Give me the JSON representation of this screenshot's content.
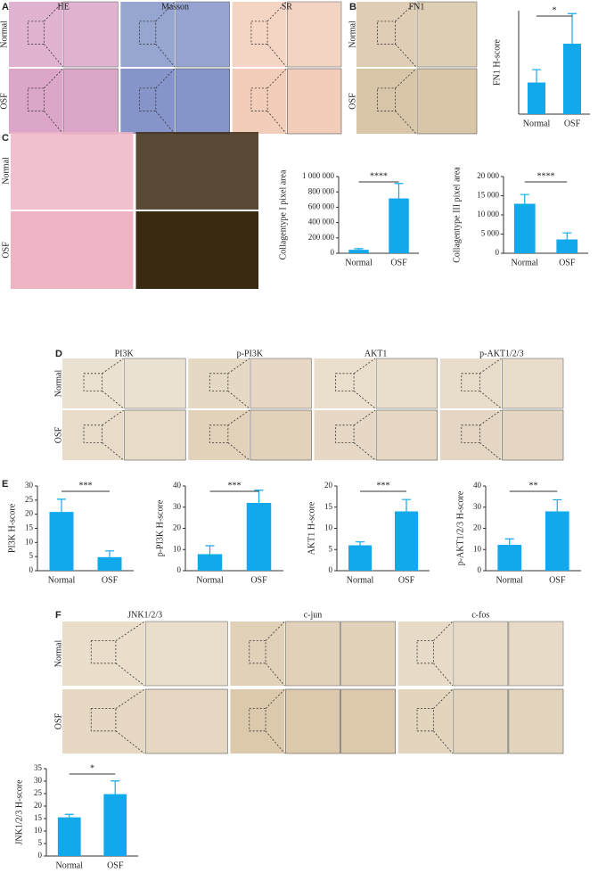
{
  "panels": [
    {
      "letter": "A",
      "columns": [
        "HE",
        "Masson",
        "SR"
      ],
      "rows": [
        "Normal",
        "OSF"
      ]
    },
    {
      "letter": "B",
      "columns": [
        "FN1"
      ],
      "rows": [
        "Normal",
        "OSF"
      ]
    },
    {
      "letter": "C",
      "rows": [
        "Normal",
        "OSF"
      ]
    },
    {
      "letter": "D",
      "columns": [
        "PI3K",
        "p-PI3K",
        "AKT1",
        "p-AKT1/2/3"
      ],
      "rows": [
        "Normal",
        "OSF"
      ]
    },
    {
      "letter": "E"
    },
    {
      "letter": "F",
      "columns": [
        "JNK1/2/3",
        "c-jun",
        "c-fos"
      ],
      "rows": [
        "Normal",
        "OSF"
      ]
    }
  ],
  "chart_data": [
    {
      "type": "bar",
      "y_label": "FN1 H-score",
      "categories": [
        "Normal",
        "OSF"
      ],
      "values": [
        11,
        24.5
      ],
      "errors": [
        4.5,
        10.5
      ],
      "color": "#12a8ec",
      "ylim": [
        0,
        36
      ],
      "significance": "*"
    },
    {
      "type": "bar",
      "y_label": "Collagentype I pixel area",
      "categories": [
        "Normal",
        "OSF"
      ],
      "values": [
        45000,
        715000
      ],
      "errors": [
        15000,
        195000
      ],
      "color": "#12a8ec",
      "ylim": [
        0,
        1000000
      ],
      "yticks": [
        0,
        {
          "value": 200000,
          "label": "200 000"
        },
        {
          "value": 400000,
          "label": "400 000"
        },
        {
          "value": 600000,
          "label": "600 000"
        },
        {
          "value": 800000,
          "label": "800 000"
        },
        {
          "value": 1000000,
          "label": "1 000 000"
        }
      ],
      "significance": "****"
    },
    {
      "type": "bar",
      "y_label": "Collagentype III pixel area",
      "categories": [
        "Normal",
        "OSF"
      ],
      "values": [
        12900,
        3600
      ],
      "errors": [
        2400,
        1700
      ],
      "color": "#12a8ec",
      "ylim": [
        0,
        20000
      ],
      "yticks": [
        0,
        {
          "value": 5000,
          "label": "5 000"
        },
        {
          "value": 10000,
          "label": "10 000"
        },
        {
          "value": 15000,
          "label": "15 000"
        },
        {
          "value": 20000,
          "label": "20 000"
        }
      ],
      "significance": "****"
    },
    {
      "type": "bar",
      "y_label": "PI3K H-score",
      "categories": [
        "Normal",
        "OSF"
      ],
      "values": [
        20.8,
        4.8
      ],
      "errors": [
        4.5,
        2.2
      ],
      "color": "#12a8ec",
      "ylim": [
        0,
        30
      ],
      "yticks": [
        0,
        5,
        10,
        15,
        20,
        25,
        30
      ],
      "significance": "***"
    },
    {
      "type": "bar",
      "y_label": "p-PI3K H-score",
      "categories": [
        "Normal",
        "OSF"
      ],
      "values": [
        7.8,
        32
      ],
      "errors": [
        4,
        6
      ],
      "color": "#12a8ec",
      "ylim": [
        0,
        40
      ],
      "yticks": [
        0,
        10,
        20,
        30,
        40
      ],
      "significance": "***"
    },
    {
      "type": "bar",
      "y_label": "AKT1 H-score",
      "categories": [
        "Normal",
        "OSF"
      ],
      "values": [
        6,
        14
      ],
      "errors": [
        0.8,
        2.8
      ],
      "color": "#12a8ec",
      "ylim": [
        0,
        20
      ],
      "yticks": [
        0,
        5,
        10,
        15,
        20
      ],
      "significance": "***"
    },
    {
      "type": "bar",
      "y_label": "p-AKT1/2/3 H-score",
      "categories": [
        "Normal",
        "OSF"
      ],
      "values": [
        12.2,
        28
      ],
      "errors": [
        2.8,
        5.5
      ],
      "color": "#12a8ec",
      "ylim": [
        0,
        40
      ],
      "yticks": [
        0,
        10,
        20,
        30,
        40
      ],
      "significance": "**"
    },
    {
      "type": "bar",
      "y_label": "JNK1/2/3 H-score",
      "categories": [
        "Normal",
        "OSF"
      ],
      "values": [
        15.5,
        24.8
      ],
      "errors": [
        1.2,
        5.3
      ],
      "color": "#12a8ec",
      "ylim": [
        0,
        35
      ],
      "yticks": [
        0,
        5,
        10,
        15,
        20,
        25,
        30,
        35
      ],
      "significance": "*"
    }
  ]
}
